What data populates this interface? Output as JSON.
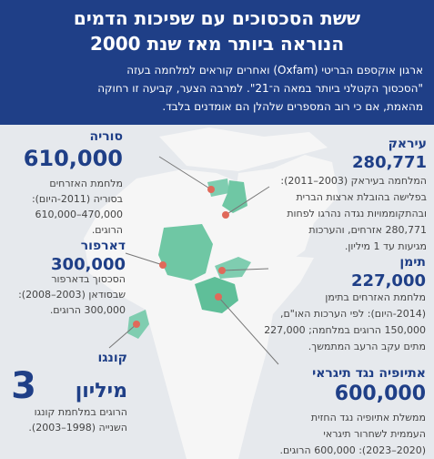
{
  "header": {
    "title": [
      "ששת הסכסוכים עם שפיכות הדמים",
      "הנוראה ביותר מאז שנת 2000"
    ],
    "subtitle": [
      "ארגון אוקספם הבריטי (Oxfam) ואחרים קוראים למלחמה בעזה",
      "\"הסכסוך הקטלני ביותר במאה ה־21\". למרבה הצער, קביעה זו רחוקה",
      "מהאמת, אם כי רוב המספרים שלהלן הם אומדנים בלבד."
    ]
  },
  "conflicts": [
    {
      "name": "סוריה",
      "figure": "610,000",
      "description": [
        "מלחמת האזרחים",
        "בסוריה (2011-היום):",
        "470,000–610,000",
        "הרוגים."
      ]
    },
    {
      "name": "עיראק",
      "figure": "280,771",
      "description": [
        "המלחמה בעיראק (2003–2011):",
        "בפלישה בהובלת ארצות הברית",
        "ובהתקוממויות נגדה נהרגו לפחות",
        "280,771 אזרחים, והערכות",
        "מגיעות עד 1 מיליון."
      ]
    },
    {
      "name": "דארפור",
      "figure": "300,000",
      "description": [
        "הסכסוך בדארפור",
        "שבסודאן (2003–2008):",
        "300,000 הרוגים."
      ]
    },
    {
      "name": "תימן",
      "figure": "227,000",
      "description": [
        "מלחמת האזרחים בתימן",
        "(2014-היום): לפי הערכות האו\"ם,",
        "150,000 הרוגים במלחמה; 227,000",
        "מתים עקב הרעב המתמשך."
      ]
    },
    {
      "name": "קונגו",
      "figure": "3",
      "figure_unit": "מיליון",
      "description": [
        "הרוגים במלחמת קונגו",
        "השנייה (1998–2003)."
      ]
    },
    {
      "name": "אתיופיה נגד תיגראי",
      "figure": "600,000",
      "description": [
        "ממשלת אתיופיה נגד החזית",
        "העממית לשחרור תיגראי",
        "(2020–2023): 600,000 הרוגים."
      ]
    }
  ]
}
